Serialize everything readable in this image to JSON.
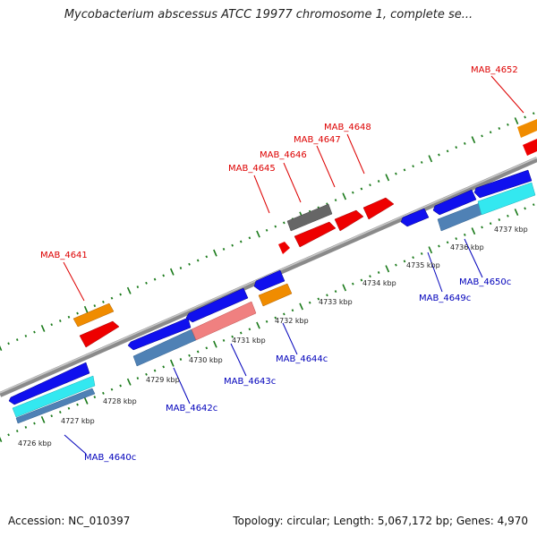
{
  "title": "Mycobacterium abscessus ATCC 19977 chromosome 1, complete se...",
  "footer": {
    "accession": "Accession: NC_010397",
    "summary": "Topology: circular; Length: 5,067,172 bp; Genes: 4,970"
  },
  "colors": {
    "backbone": "#888888",
    "tick": "#1a7a1a",
    "label_top": "#dd0000",
    "label_bottom": "#0000bb",
    "feature_red": "#ee0000",
    "feature_orange": "#f08c00",
    "feature_gray": "#666666",
    "feature_blue": "#1010ee",
    "feature_steel": "#4f81b5",
    "feature_pink": "#f08080",
    "feature_cyan": "#33e8f0"
  },
  "kbp_ticks": [
    "4726 kbp",
    "4727 kbp",
    "4728 kbp",
    "4729 kbp",
    "4730 kbp",
    "4731 kbp",
    "4732 kbp",
    "4733 kbp",
    "4734 kbp",
    "4735 kbp",
    "4736 kbp",
    "4737 kbp"
  ],
  "top_labels": [
    "MAB_4641",
    "MAB_4645",
    "MAB_4646",
    "MAB_4647",
    "MAB_4648",
    "MAB_4652"
  ],
  "bottom_labels": [
    "MAB_4640c",
    "MAB_4642c",
    "MAB_4643c",
    "MAB_4644c",
    "MAB_4649c",
    "MAB_4650c"
  ]
}
